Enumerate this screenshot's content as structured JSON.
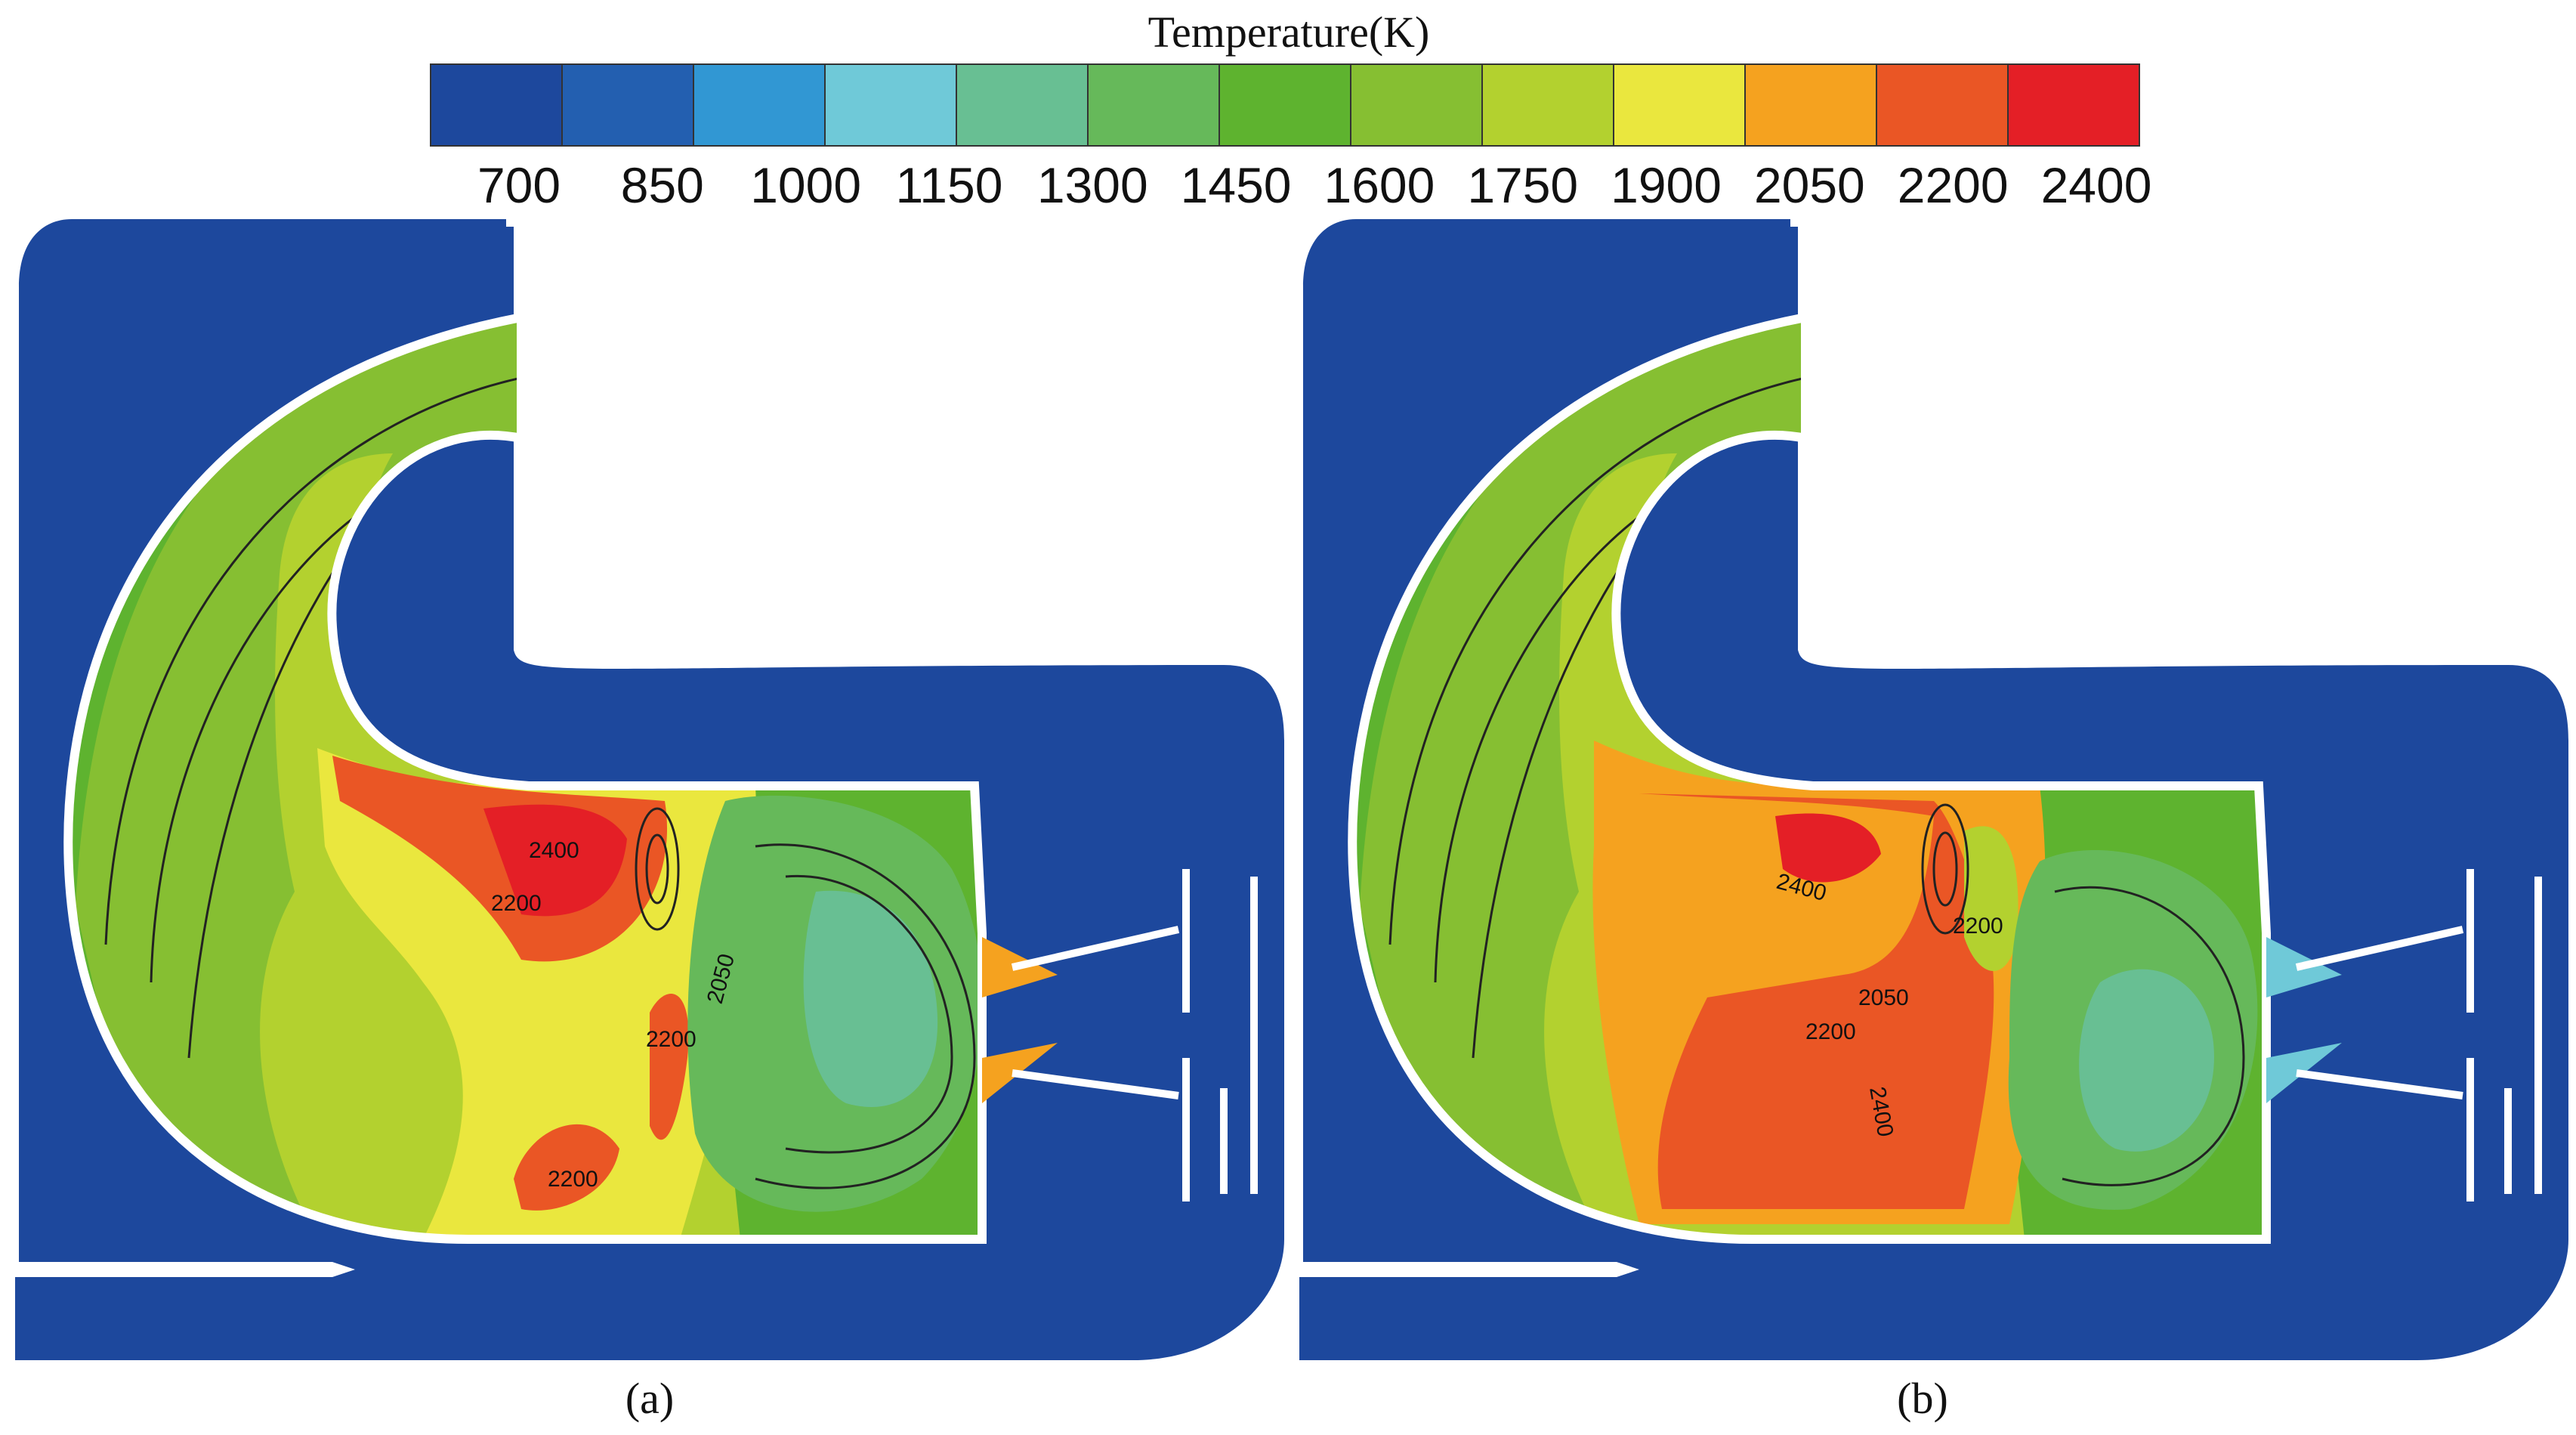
{
  "colorbar": {
    "title": "Temperature(K)",
    "tick_labels": [
      "700",
      "850",
      "1000",
      "1150",
      "1300",
      "1450",
      "1600",
      "1750",
      "1900",
      "2050",
      "2200",
      "2400"
    ],
    "colors": [
      "#1d489d",
      "#235fb0",
      "#3197d3",
      "#6fc9d8",
      "#68bf93",
      "#66b95a",
      "#5eb32f",
      "#86bf32",
      "#b3d12f",
      "#eae73e",
      "#f5a21f",
      "#ea5625",
      "#e41f26"
    ]
  },
  "panels": [
    {
      "caption": "(a)",
      "contour_labels": [
        "2400",
        "2200",
        "2050",
        "2200",
        "2200"
      ]
    },
    {
      "caption": "(b)",
      "contour_labels": [
        "2400",
        "2200",
        "2050",
        "2200",
        "2400"
      ]
    }
  ]
}
